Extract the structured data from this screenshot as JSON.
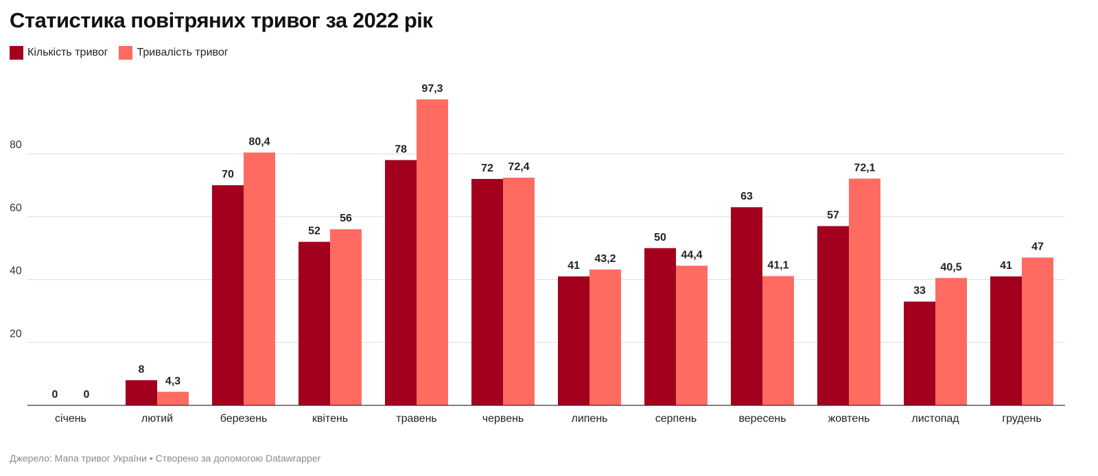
{
  "chart_data": {
    "type": "bar",
    "title": "Статистика повітряних тривог за 2022 рік",
    "categories": [
      "січень",
      "лютий",
      "березень",
      "квітень",
      "травень",
      "червень",
      "липень",
      "серпень",
      "вересень",
      "жовтень",
      "листопад",
      "грудень"
    ],
    "series": [
      {
        "name": "Кількість тривог",
        "color": "#a3001e",
        "values": [
          0,
          8,
          70,
          52,
          78,
          72,
          41,
          50,
          63,
          57,
          33,
          41
        ],
        "labels": [
          "0",
          "8",
          "70",
          "52",
          "78",
          "72",
          "41",
          "50",
          "63",
          "57",
          "33",
          "41"
        ]
      },
      {
        "name": "Тривалість тривог",
        "color": "#ff6b61",
        "values": [
          0,
          4.3,
          80.4,
          56,
          97.3,
          72.4,
          43.2,
          44.4,
          41.1,
          72.1,
          40.5,
          47
        ],
        "labels": [
          "0",
          "4,3",
          "80,4",
          "56",
          "97,3",
          "72,4",
          "43,2",
          "44,4",
          "41,1",
          "72,1",
          "40,5",
          "47"
        ]
      }
    ],
    "ylim": [
      0,
      100
    ],
    "yticks": [
      20,
      40,
      60,
      80
    ],
    "grid": true,
    "legend_position": "top-left",
    "xlabel": "",
    "ylabel": ""
  },
  "footer": "Джерело: Мапа тривог України • Створено за допомогою Datawrapper"
}
